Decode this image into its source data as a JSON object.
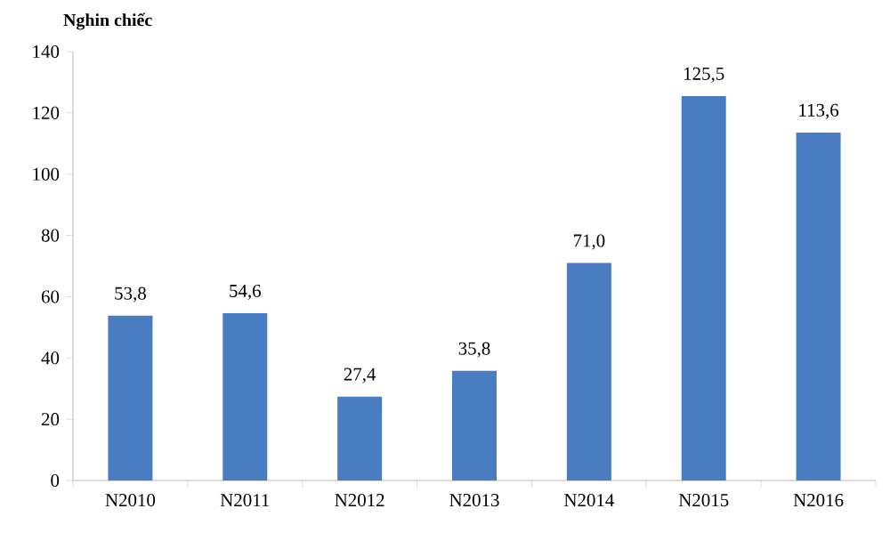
{
  "chart_data": {
    "type": "bar",
    "ylabel": "Nghin chiếc",
    "categories": [
      "N2010",
      "N2011",
      "N2012",
      "N2013",
      "N2014",
      "N2015",
      "N2016"
    ],
    "values": [
      53.8,
      54.6,
      27.4,
      35.8,
      71.0,
      125.5,
      113.6
    ],
    "value_labels": [
      "53,8",
      "54,6",
      "27,4",
      "35,8",
      "71,0",
      "125,5",
      "113,6"
    ],
    "color": "#4a7cc1",
    "ylim": [
      0,
      140
    ],
    "yticks": [
      0,
      20,
      40,
      60,
      80,
      100,
      120,
      140
    ]
  }
}
